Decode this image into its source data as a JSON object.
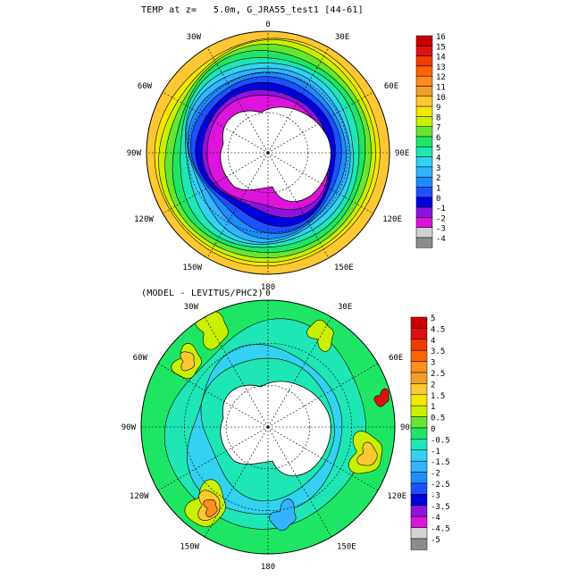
{
  "top_title": "TEMP at z=   5.0m, G_JRA55_test1 [44-61]",
  "bottom_title": "(MODEL - LEVITUS/PHC2)",
  "lon_labels": {
    "top": "0",
    "bottom": "180",
    "w30": "30W",
    "e30": "30E",
    "w60": "60W",
    "e60": "60E",
    "w90": "90W",
    "e90": "90E",
    "w120": "120W",
    "e120": "120E",
    "w150": "150W",
    "e150": "150E"
  },
  "chart_data": [
    {
      "type": "heatmap",
      "title": "TEMP at z=   5.0m, G_JRA55_test1 [44-61]",
      "projection": "south polar stereographic",
      "colorbar": {
        "levels": [
          "16",
          "15",
          "14",
          "13",
          "12",
          "11",
          "10",
          "9",
          "8",
          "7",
          "6",
          "5",
          "4",
          "3",
          "2",
          "1",
          "0",
          "-1",
          "-2",
          "-3",
          "-4"
        ],
        "colors": [
          "#c80000",
          "#e01010",
          "#f03c00",
          "#ff6400",
          "#ff8c1e",
          "#f0a028",
          "#ffc832",
          "#f5e600",
          "#c8f000",
          "#64e632",
          "#1ee664",
          "#1ee6b4",
          "#32d2f0",
          "#32b4ff",
          "#1e8cff",
          "#1e50ff",
          "#0000dc",
          "#8c14dc",
          "#dc14dc",
          "#d2d2d2",
          "#8c8c8c"
        ]
      }
    },
    {
      "type": "heatmap",
      "title": "(MODEL - LEVITUS/PHC2)",
      "projection": "south polar stereographic",
      "colorbar": {
        "levels": [
          "5",
          "4.5",
          "4",
          "3.5",
          "3",
          "2.5",
          "2",
          "1.5",
          "1",
          "0.5",
          "0",
          "-0.5",
          "-1",
          "-1.5",
          "-2",
          "-2.5",
          "-3",
          "-3.5",
          "-4",
          "-4.5",
          "-5"
        ],
        "colors": [
          "#c80000",
          "#e01010",
          "#f03c00",
          "#ff6400",
          "#ff8c1e",
          "#f0a028",
          "#ffc832",
          "#f5e600",
          "#c8f000",
          "#64e632",
          "#1ee664",
          "#1ee6b4",
          "#32d2f0",
          "#32b4ff",
          "#1e8cff",
          "#1e50ff",
          "#0000dc",
          "#8c14dc",
          "#dc14dc",
          "#d2d2d2",
          "#8c8c8c"
        ]
      }
    }
  ]
}
